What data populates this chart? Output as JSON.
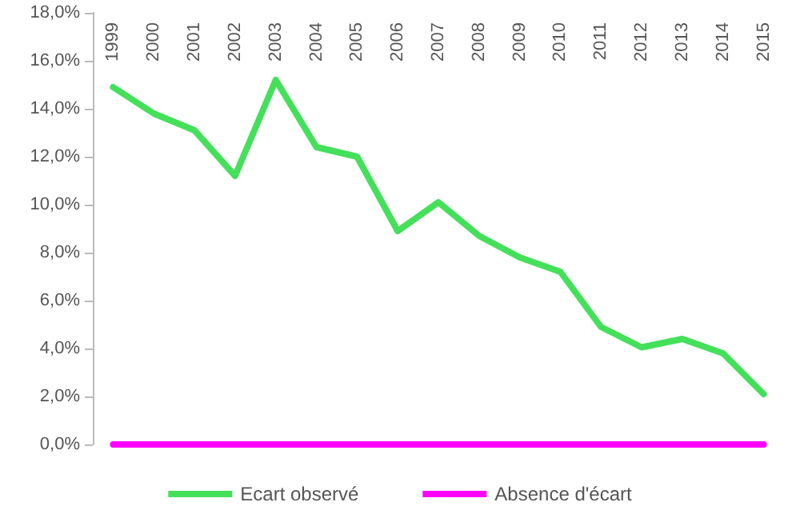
{
  "chart_data": {
    "type": "line",
    "categories": [
      "1999",
      "2000",
      "2001",
      "2002",
      "2003",
      "2004",
      "2005",
      "2006",
      "2007",
      "2008",
      "2009",
      "2010",
      "2011",
      "2012",
      "2013",
      "2014",
      "2015"
    ],
    "series": [
      {
        "name": "Ecart observé",
        "color": "#44e05a",
        "values": [
          14.9,
          13.8,
          13.1,
          11.2,
          15.2,
          12.4,
          12.0,
          8.9,
          10.1,
          8.7,
          7.8,
          7.2,
          4.9,
          4.05,
          4.4,
          3.8,
          2.1
        ]
      },
      {
        "name": "Absence d'écart",
        "color": "#ff00ff",
        "values": [
          0,
          0,
          0,
          0,
          0,
          0,
          0,
          0,
          0,
          0,
          0,
          0,
          0,
          0,
          0,
          0,
          0
        ]
      }
    ],
    "ylim": [
      0,
      18
    ],
    "yticks": [
      {
        "value": 0,
        "label": "0,0%"
      },
      {
        "value": 2,
        "label": "2,0%"
      },
      {
        "value": 4,
        "label": "4,0%"
      },
      {
        "value": 6,
        "label": "6,0%"
      },
      {
        "value": 8,
        "label": "8,0%"
      },
      {
        "value": 10,
        "label": "10,0%"
      },
      {
        "value": 12,
        "label": "12,0%"
      },
      {
        "value": 14,
        "label": "14,0%"
      },
      {
        "value": 16,
        "label": "16,0%"
      },
      {
        "value": 18,
        "label": "18,0%"
      }
    ],
    "grid": false,
    "legend": "bottom",
    "marker": "none",
    "line_style": "solid"
  }
}
